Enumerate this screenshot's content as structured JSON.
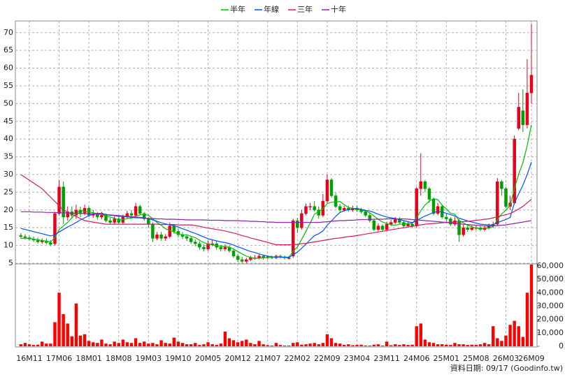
{
  "chart_data": {
    "type": "candlestick",
    "footer": "資料日期: 09/17 (Goodinfo.tw)",
    "categories": [
      null,
      null,
      "16M11",
      null,
      null,
      null,
      null,
      null,
      null,
      "17M06",
      null,
      null,
      null,
      null,
      null,
      null,
      "18M01",
      null,
      null,
      null,
      null,
      null,
      null,
      "18M08",
      null,
      null,
      null,
      null,
      null,
      null,
      "19M03",
      null,
      null,
      null,
      null,
      null,
      null,
      "19M10",
      null,
      null,
      null,
      null,
      null,
      null,
      "20M05",
      null,
      null,
      null,
      null,
      null,
      null,
      "20M12",
      null,
      null,
      null,
      null,
      null,
      null,
      "21M07",
      null,
      null,
      null,
      null,
      null,
      null,
      "22M02",
      null,
      null,
      null,
      null,
      null,
      null,
      "22M09",
      null,
      null,
      null,
      null,
      null,
      null,
      "23M04",
      null,
      null,
      null,
      null,
      null,
      null,
      "23M11",
      null,
      null,
      null,
      null,
      null,
      null,
      "24M06",
      null,
      null,
      null,
      null,
      null,
      null,
      "25M01",
      null,
      null,
      null,
      null,
      null,
      null,
      "25M08",
      null,
      null,
      null,
      null,
      null,
      null,
      "26M03",
      null,
      null,
      null,
      null,
      null,
      "26M09"
    ],
    "open": [
      12.8,
      12.5,
      12.2,
      11.8,
      11.5,
      11,
      11.3,
      10.8,
      10.5,
      19,
      26.5,
      18,
      19.5,
      18.5,
      20,
      19,
      20.5,
      18.5,
      19,
      18,
      18.5,
      17,
      16.5,
      17.5,
      16.5,
      18,
      19,
      18.5,
      21,
      19,
      17.5,
      16,
      12,
      13,
      12,
      12.5,
      15.5,
      14,
      13,
      12.5,
      12,
      11,
      10.5,
      9.5,
      9,
      10.5,
      10.5,
      9.5,
      9,
      9.5,
      8.5,
      7,
      6,
      5.5,
      6,
      6.5,
      6.5,
      7,
      6.5,
      6.8,
      6.5,
      7,
      6.8,
      6.5,
      7,
      17,
      15,
      19,
      21,
      21,
      20,
      18.5,
      22.5,
      28.5,
      24,
      21,
      20,
      20.5,
      20,
      20.5,
      20,
      19.5,
      18.5,
      17,
      14.5,
      15.5,
      14.5,
      16,
      16.5,
      17.5,
      16.5,
      15.5,
      16,
      15.5,
      26,
      28,
      26,
      23,
      19,
      21,
      18,
      17.5,
      16,
      17,
      13,
      15,
      14.5,
      15,
      15,
      14.5,
      15,
      15.5,
      16,
      28,
      26,
      21,
      22,
      43,
      48,
      44,
      53
    ],
    "high": [
      13.5,
      13.2,
      12.8,
      12.5,
      12.2,
      12,
      12,
      11.5,
      19.5,
      28.5,
      28,
      21,
      21,
      21.5,
      21,
      21.5,
      21,
      20,
      19.5,
      19.5,
      19,
      17.8,
      18.2,
      18.3,
      18.7,
      19.8,
      20,
      22,
      21.5,
      19.5,
      18,
      16.5,
      13.8,
      13.8,
      13.2,
      16.5,
      16,
      14.8,
      13.8,
      13.2,
      12.6,
      11.7,
      11.2,
      10.3,
      11.3,
      11.5,
      11.2,
      10.2,
      10.3,
      10,
      9.2,
      7.6,
      6.8,
      6.5,
      7,
      7.3,
      7.5,
      7.4,
      7.2,
      7.2,
      7.4,
      7.4,
      7.2,
      7,
      17.5,
      17.8,
      20,
      21.8,
      22,
      22.5,
      21,
      24.5,
      30,
      29,
      24.8,
      21.7,
      21.2,
      21.2,
      21.2,
      21.2,
      20.6,
      20,
      19.2,
      17.5,
      16.2,
      16,
      16.7,
      17.2,
      18,
      18,
      17,
      16.8,
      16.6,
      26.5,
      36,
      28.5,
      26.5,
      23.5,
      22,
      21.5,
      19,
      18,
      18,
      17.5,
      15.8,
      15.6,
      15.6,
      15.7,
      15.5,
      15.6,
      16.2,
      16.7,
      29,
      28.5,
      26.5,
      24,
      41,
      53,
      54,
      62.5,
      72.5
    ],
    "low": [
      12,
      11.7,
      11.3,
      11,
      10.5,
      10.5,
      10.3,
      9.8,
      10,
      18.5,
      16,
      17,
      17.5,
      17.5,
      18,
      18.5,
      18,
      17.8,
      17.3,
      17.4,
      16.5,
      16,
      16,
      16,
      16,
      17.5,
      17.8,
      18,
      18.5,
      17,
      15,
      11,
      11.5,
      11.3,
      11.3,
      12,
      13.3,
      12.3,
      11.8,
      11.3,
      10.4,
      9.8,
      8.8,
      8.3,
      8.5,
      9.8,
      8.8,
      8.3,
      8.4,
      8,
      6.5,
      5.3,
      5,
      5,
      5.6,
      6,
      6.1,
      6,
      6.1,
      6.1,
      6.1,
      6.3,
      6,
      6,
      6.5,
      13.5,
      14.5,
      18.5,
      20,
      19.5,
      17.5,
      18,
      22,
      23.5,
      20.5,
      19.5,
      19.5,
      19.5,
      19.5,
      19.4,
      19,
      18,
      16.5,
      14,
      14,
      14,
      14,
      15.5,
      16,
      16,
      15,
      15,
      15,
      15,
      24,
      25,
      22,
      18.5,
      18.5,
      17.5,
      16.5,
      15.5,
      15.5,
      11,
      12.5,
      13.8,
      14,
      14.3,
      14,
      14,
      14.5,
      15,
      15.5,
      24,
      20.5,
      20,
      21.5,
      42.5,
      42,
      43,
      50
    ],
    "close": [
      12.5,
      12.2,
      11.8,
      11.5,
      11,
      11.3,
      10.8,
      10.3,
      19,
      26.5,
      18,
      19.5,
      18.5,
      20,
      19,
      20.5,
      18.5,
      19,
      18,
      18.5,
      17,
      16.5,
      17.5,
      16.5,
      18,
      19,
      18.5,
      21,
      19,
      17.5,
      16,
      12,
      13,
      12,
      12.5,
      15.5,
      14,
      13,
      12.5,
      12,
      11,
      10.5,
      9.5,
      9,
      10.5,
      10.5,
      9.5,
      9,
      9.5,
      8.5,
      7,
      6,
      5.5,
      6,
      6.5,
      6.5,
      7,
      6.5,
      6.8,
      6.5,
      7,
      6.8,
      6.5,
      6.5,
      17,
      15,
      19,
      21,
      21,
      20,
      18.5,
      22.5,
      28.5,
      24,
      21,
      20,
      20.5,
      20,
      20.5,
      20,
      19.5,
      18.5,
      17,
      14.5,
      15.5,
      14.5,
      16,
      16.5,
      17.5,
      16.5,
      15.5,
      16,
      15.5,
      26,
      28,
      26,
      23,
      19,
      21,
      18,
      17.5,
      16,
      17,
      13,
      15,
      14.5,
      15,
      15,
      14.5,
      15,
      15.5,
      16,
      28,
      26,
      21,
      22,
      40,
      49,
      44,
      53,
      58
    ],
    "volume": [
      1500,
      2500,
      1500,
      1000,
      1200,
      3500,
      2000,
      2000,
      18000,
      40000,
      24000,
      17000,
      7500,
      32000,
      8000,
      9000,
      4000,
      3000,
      2500,
      5000,
      2000,
      1500,
      3500,
      2500,
      5000,
      3000,
      2500,
      6000,
      2500,
      3500,
      2000,
      2500,
      1500,
      4500,
      2500,
      2000,
      6500,
      3500,
      2500,
      1500,
      1500,
      2500,
      1000,
      1500,
      3000,
      1500,
      1000,
      2000,
      11000,
      6000,
      4500,
      3000,
      4000,
      5000,
      2500,
      1500,
      4000,
      1500,
      800,
      500,
      2500,
      1000,
      500,
      500,
      2500,
      3000,
      1200,
      1500,
      2000,
      2500,
      1500,
      2500,
      9000,
      6000,
      2500,
      2000,
      1000,
      1500,
      800,
      1000,
      1200,
      600,
      500,
      1200,
      1500,
      500,
      3500,
      800,
      1500,
      1000,
      1500,
      1000,
      1200,
      15000,
      17000,
      5000,
      3000,
      2500,
      1500,
      1500,
      1200,
      1000,
      2500,
      1500,
      1500,
      1000,
      1200,
      1000,
      1500,
      2500,
      1500,
      15000,
      6000,
      4000,
      8000,
      16000,
      19000,
      15000,
      7000,
      40000,
      61000
    ],
    "up_color": "#e8001c",
    "down_color": "#00a000",
    "volume_color": "#ff0000",
    "series": [
      {
        "name": "半年",
        "color": "#00c000",
        "values": [
          12,
          12,
          12,
          11.8,
          11.6,
          11.4,
          11.2,
          11,
          12.2,
          14.5,
          15.5,
          16.5,
          17.8,
          19,
          20,
          19.5,
          19.5,
          19.2,
          19,
          18.8,
          18.3,
          18,
          17.7,
          17.2,
          17.3,
          17.6,
          17.7,
          18.3,
          18.6,
          18.8,
          18.5,
          17.5,
          16.5,
          15.7,
          14.7,
          14.2,
          13.8,
          13.2,
          13,
          13,
          12.6,
          12.2,
          11.5,
          10.8,
          10.4,
          10.2,
          10,
          9.8,
          9.7,
          9.5,
          9,
          8.3,
          7.6,
          7,
          6.6,
          6.4,
          6.4,
          6.5,
          6.6,
          6.7,
          6.8,
          6.8,
          6.7,
          6.7,
          8.3,
          9.6,
          11.7,
          14,
          16.3,
          18.8,
          19.6,
          20.3,
          21.8,
          22.2,
          22.3,
          22.4,
          21.5,
          20.7,
          20.5,
          20.3,
          20,
          19.7,
          19.2,
          18.3,
          17.4,
          16.6,
          16.2,
          15.8,
          15.7,
          16,
          16,
          16.2,
          16.2,
          17.8,
          19.8,
          21.4,
          22.5,
          23.2,
          22.9,
          21.4,
          20.3,
          19.1,
          18.8,
          16.9,
          16.4,
          15.7,
          15.3,
          14.9,
          14.6,
          14.8,
          14.9,
          15.3,
          17.3,
          18.9,
          20,
          21.3,
          26.1,
          30.1,
          33.3,
          38.1,
          44
        ]
      },
      {
        "name": "年線",
        "color": "#0050ff",
        "values": [
          14.8,
          14.5,
          14.2,
          13.9,
          13.6,
          13.3,
          13,
          12.7,
          13,
          13.8,
          14.5,
          15.2,
          15.8,
          16.5,
          17.2,
          17.8,
          18.4,
          18.8,
          19,
          19.1,
          18.7,
          18.5,
          18.4,
          18.2,
          18.2,
          18.1,
          17.9,
          17.8,
          17.8,
          17.7,
          17.6,
          17.2,
          16.8,
          16.4,
          16.1,
          15.8,
          15.6,
          15.2,
          14.7,
          14.3,
          13.8,
          13.4,
          12.9,
          12.4,
          11.9,
          11.6,
          11.3,
          11,
          10.8,
          10.5,
          10.1,
          9.6,
          9.2,
          8.7,
          8.3,
          8,
          7.6,
          7.3,
          7,
          6.8,
          6.7,
          6.7,
          6.6,
          6.6,
          7.4,
          8.1,
          9.2,
          10.4,
          11.6,
          12.8,
          13.3,
          14.1,
          15.7,
          16.9,
          18.2,
          19.3,
          19.8,
          20.1,
          20.3,
          20.4,
          20.2,
          19.9,
          19.7,
          19.3,
          18.8,
          18.4,
          18,
          17.8,
          17.6,
          17.3,
          17,
          16.7,
          16.4,
          17,
          17.7,
          18.3,
          18.8,
          19.3,
          19.6,
          19.4,
          19.1,
          18.7,
          18.3,
          17.7,
          17.3,
          16.9,
          16.6,
          16.3,
          16,
          15.9,
          15.8,
          15.8,
          16.4,
          16.9,
          17.3,
          17.9,
          22,
          24.5,
          27,
          30,
          33.5
        ]
      },
      {
        "name": "三年",
        "color": "#d81b60",
        "values": [
          30,
          29.2,
          28.4,
          27.6,
          26.8,
          26,
          24.8,
          23.6,
          22.4,
          21.2,
          20,
          19.4,
          18.8,
          18.2,
          17.6,
          17,
          16.8,
          16.6,
          16.4,
          16.2,
          16,
          16,
          16,
          16,
          16,
          16,
          16,
          16,
          16,
          16,
          16,
          16,
          16,
          15.9,
          15.9,
          15.9,
          15.9,
          15.8,
          15.8,
          15.8,
          15.8,
          15.6,
          15.4,
          15.1,
          14.9,
          14.7,
          14.5,
          14.3,
          14.1,
          13.8,
          13.5,
          13.2,
          12.8,
          12.5,
          12.1,
          11.8,
          11.5,
          11.2,
          10.9,
          10.5,
          10.2,
          10.2,
          10.2,
          10.2,
          10.3,
          10.3,
          10.5,
          10.6,
          10.8,
          11,
          11.2,
          11.4,
          11.6,
          11.8,
          12,
          12.1,
          12.3,
          12.5,
          12.6,
          12.8,
          13,
          13.2,
          13.4,
          13.6,
          13.8,
          14,
          14.2,
          14.4,
          14.6,
          14.8,
          15,
          15.2,
          15.4,
          15.6,
          15.8,
          16,
          16.1,
          16.2,
          16.3,
          16.4,
          16.5,
          16.6,
          16.6,
          16.7,
          16.7,
          16.8,
          16.9,
          17.1,
          17.2,
          17.4,
          17.5,
          17.8,
          18.1,
          18.4,
          18.7,
          19,
          19.6,
          20.3,
          21,
          22,
          23
        ]
      },
      {
        "name": "十年",
        "color": "#8e24aa",
        "values": [
          19.5,
          19.5,
          19.5,
          19.4,
          19.4,
          19.4,
          19.3,
          19.3,
          19.3,
          19.2,
          19.2,
          19.2,
          19.1,
          19.1,
          19,
          19,
          18.9,
          18.9,
          18.8,
          18.8,
          18.7,
          18.6,
          18.5,
          18.4,
          18.3,
          18.2,
          18.1,
          18,
          17.9,
          17.8,
          17.6,
          17.6,
          17.5,
          17.5,
          17.4,
          17.4,
          17.4,
          17.3,
          17.3,
          17.2,
          17.2,
          17.2,
          17.2,
          17.2,
          17.1,
          17.1,
          17.1,
          17.1,
          17,
          17,
          17,
          17,
          16.9,
          16.9,
          16.8,
          16.8,
          16.7,
          16.7,
          16.6,
          16.6,
          16.5,
          16.5,
          16.5,
          16.5,
          16.5,
          16.5,
          16.5,
          16.5,
          16.5,
          16.5,
          16.5,
          16.6,
          16.7,
          16.8,
          16.9,
          17,
          17,
          17.1,
          17.1,
          17.2,
          17.3,
          17.3,
          17.3,
          17.4,
          17.4,
          17.4,
          17.5,
          17.5,
          17.5,
          17.5,
          17.5,
          17.4,
          17.3,
          17.2,
          17.1,
          17,
          16.9,
          16.8,
          16.7,
          16.6,
          16.5,
          16.4,
          16.2,
          16.1,
          16,
          15.9,
          15.8,
          15.7,
          15.6,
          15.5,
          15.5,
          15.5,
          15.6,
          15.7,
          15.8,
          16,
          16.2,
          16.4,
          16.6,
          16.8,
          17
        ]
      }
    ],
    "ylim": [
      4.8,
      73.3
    ],
    "yticks": [
      5,
      10,
      15,
      20,
      25,
      30,
      35,
      40,
      45,
      50,
      55,
      60,
      65,
      70
    ],
    "y2lim": [
      0,
      61500
    ],
    "y2ticks": [
      0,
      {
        "value": 10000,
        "label": "10,000"
      },
      {
        "value": 20000,
        "label": "20,000"
      },
      {
        "value": 30000,
        "label": "30,000"
      },
      {
        "value": 40000,
        "label": "40,000"
      },
      {
        "value": 50000,
        "label": "50,000"
      },
      {
        "value": 60000,
        "label": "60,000"
      }
    ],
    "grid": true
  }
}
